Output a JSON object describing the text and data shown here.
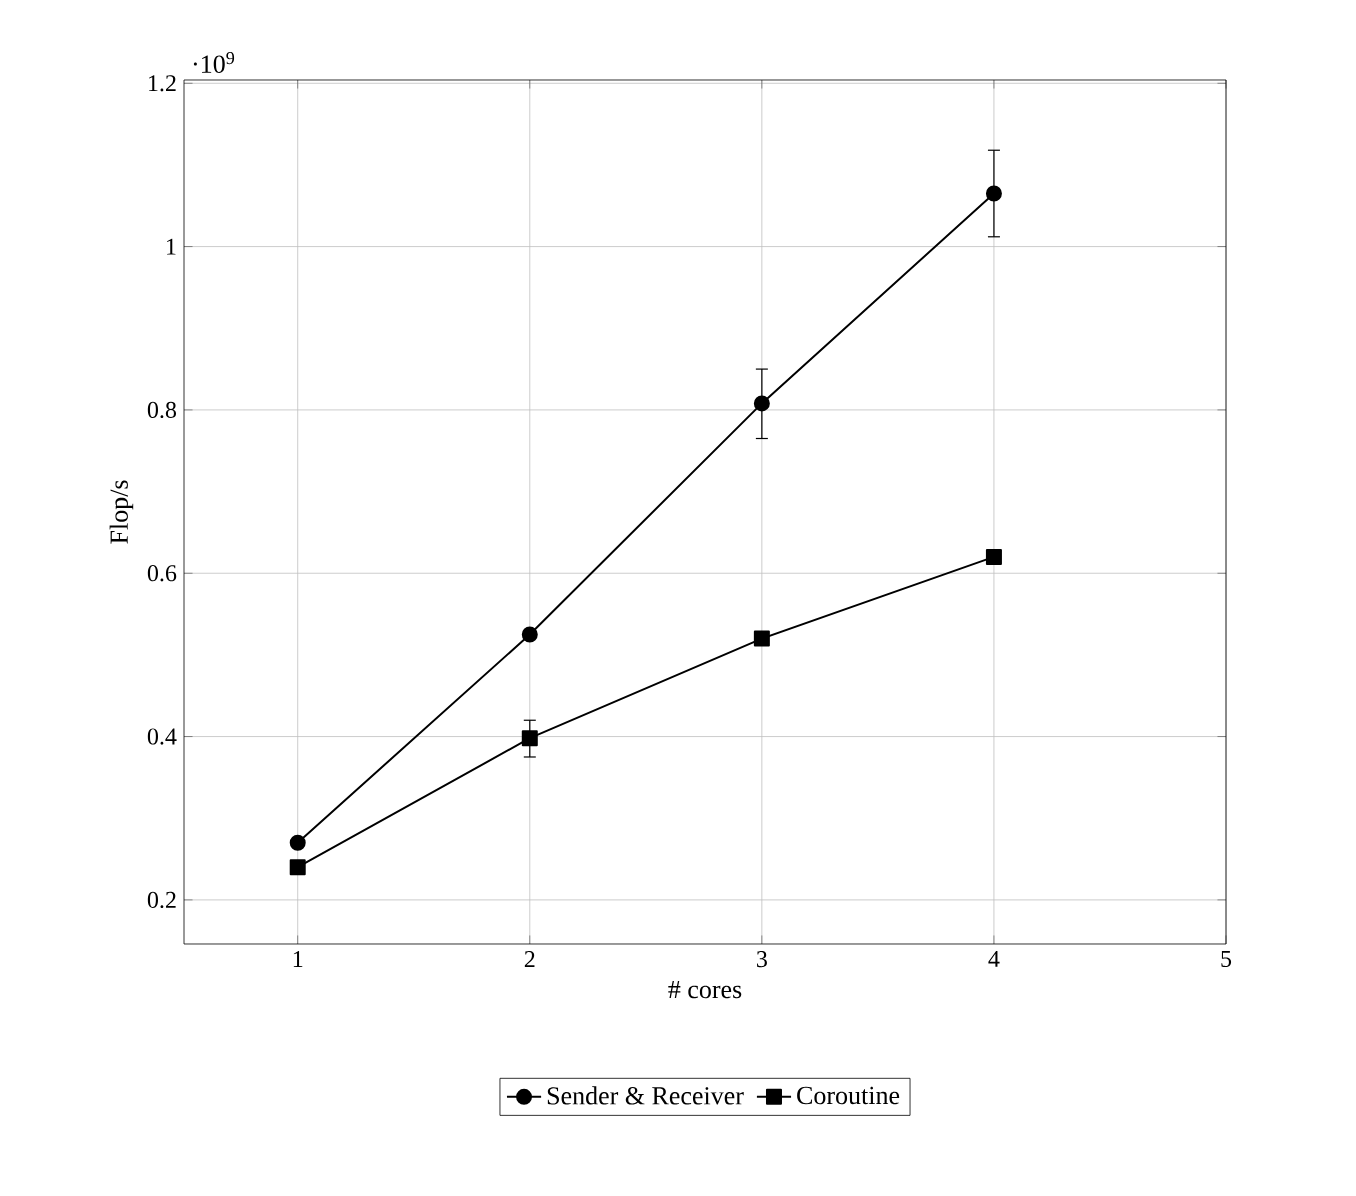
{
  "chart_data": {
    "type": "line",
    "xlabel": "# cores",
    "ylabel": "Flop/s",
    "annotations": [
      "·10$^{9}$"
    ],
    "x": [
      1,
      2,
      3,
      4
    ],
    "xlim": [
      0.51,
      5
    ],
    "xticks": [
      1,
      2,
      3,
      4,
      5
    ],
    "ylim": [
      0.146,
      1.204
    ],
    "yticks": [
      0.2,
      0.4,
      0.6,
      0.8,
      1,
      1.2
    ],
    "grid": true,
    "legend": "bottom",
    "series": [
      {
        "name": "Sender & Receiver",
        "color": "#000000",
        "marker": "circle",
        "values": [
          0.27,
          0.525,
          0.808,
          1.065
        ],
        "errors": [
          null,
          null,
          [
            0.765,
            0.85
          ],
          [
            1.012,
            1.118
          ]
        ]
      },
      {
        "name": "Coroutine",
        "color": "#000000",
        "marker": "square",
        "values": [
          0.24,
          0.398,
          0.52,
          0.62
        ],
        "errors": [
          null,
          [
            0.375,
            0.42
          ],
          null,
          null
        ]
      }
    ]
  }
}
